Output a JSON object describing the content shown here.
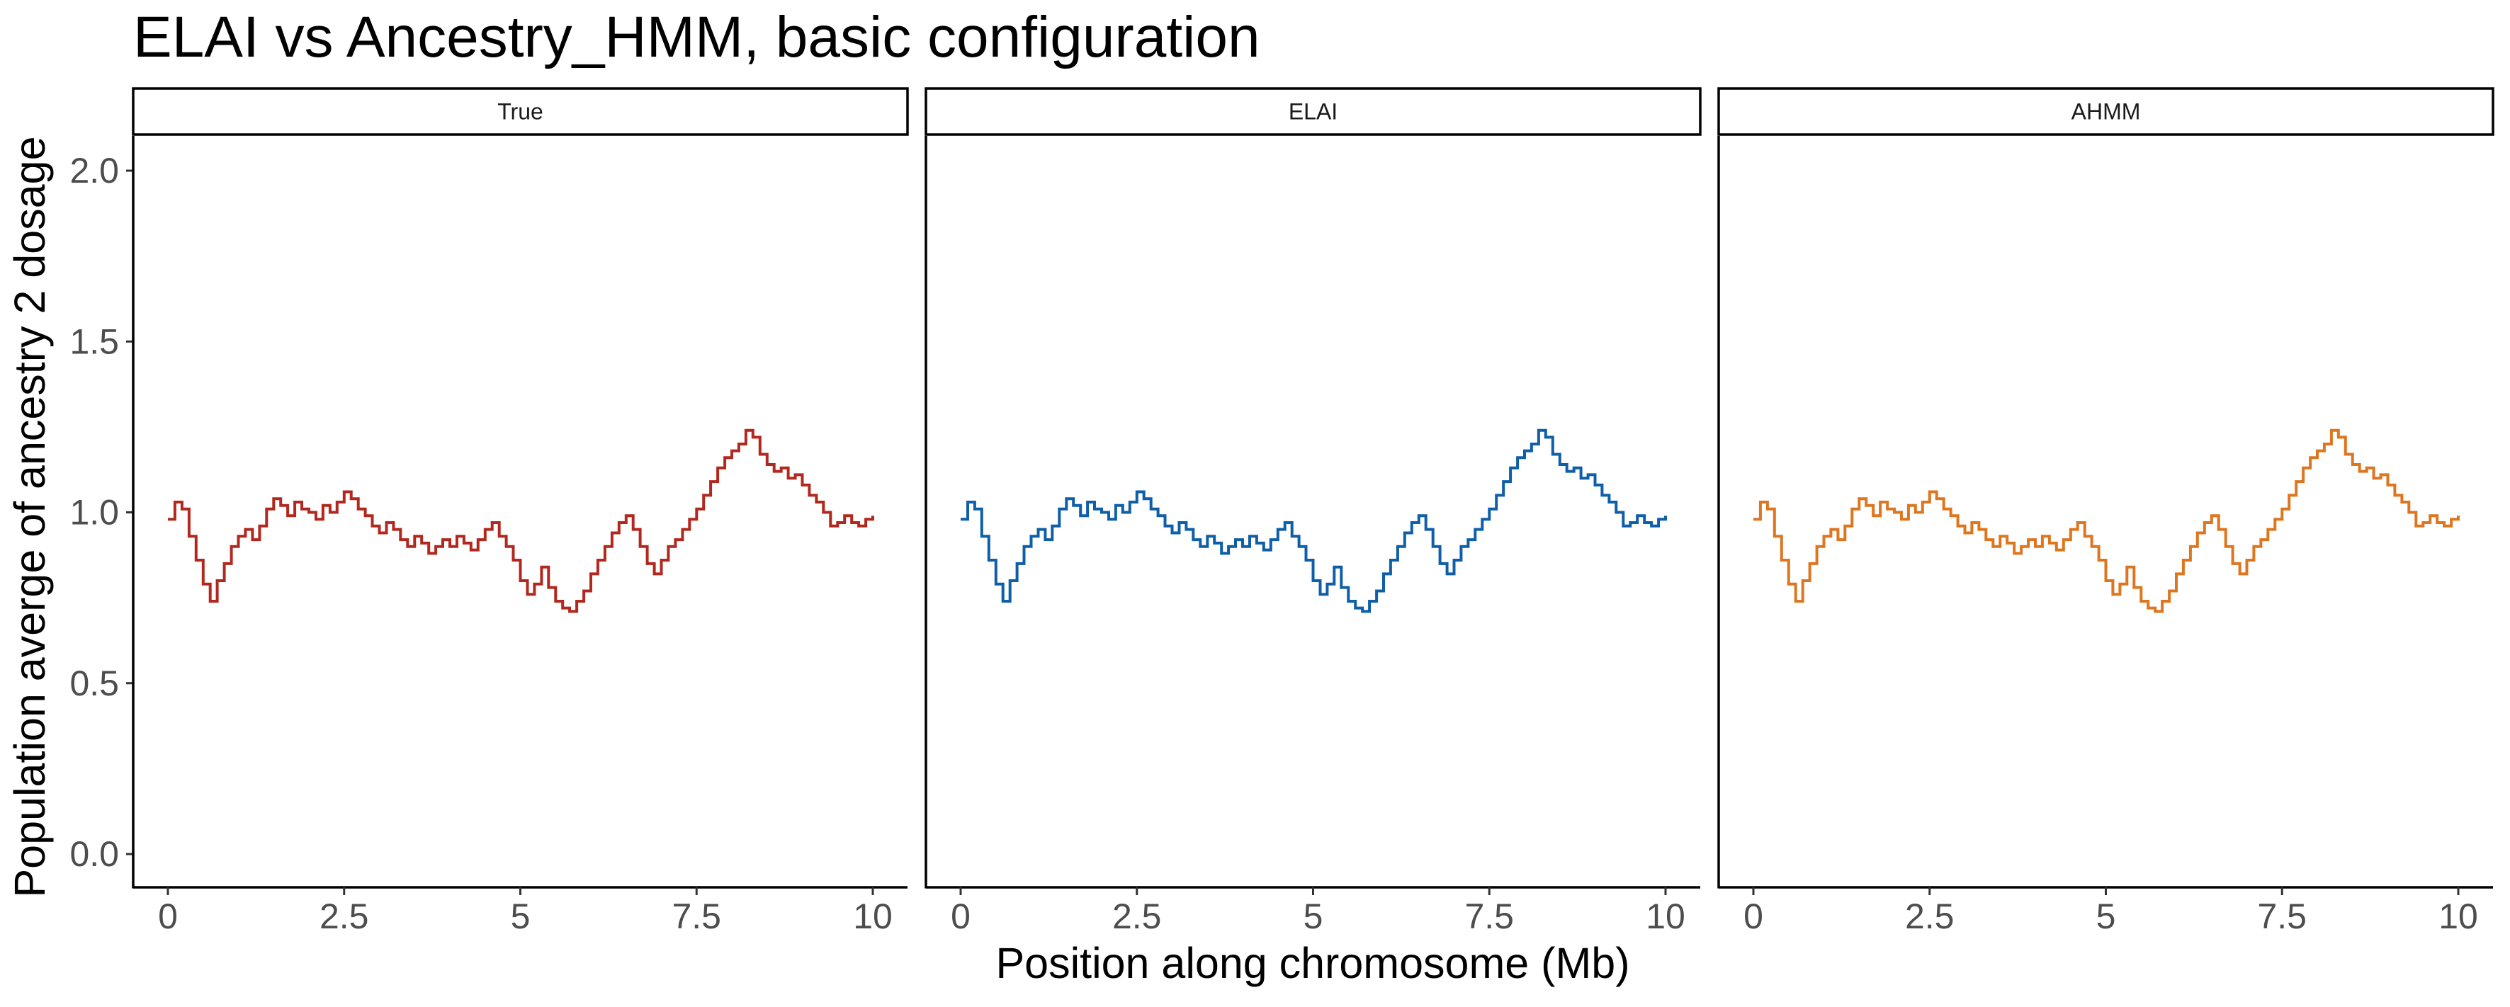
{
  "chart_data": {
    "type": "line",
    "title": "ELAI vs Ancestry_HMM, basic configuration",
    "xlabel": "Position along chromosome (Mb)",
    "ylabel": "Population averge of ancestry 2 dosage",
    "xlim": [
      0,
      10
    ],
    "ylim": [
      0,
      2.0
    ],
    "x_ticks": [
      "0",
      "2.5",
      "5",
      "7.5",
      "10"
    ],
    "y_ticks": [
      "0.0",
      "0.5",
      "1.0",
      "1.5",
      "2.0"
    ],
    "grid": false,
    "legend": "none",
    "panels": [
      {
        "name": "True",
        "color": "#B2281E"
      },
      {
        "name": "ELAI",
        "color": "#0F5FA8"
      },
      {
        "name": "AHMM",
        "color": "#DE7620"
      }
    ],
    "series": {
      "x": [
        0,
        0.1,
        0.2,
        0.3,
        0.4,
        0.5,
        0.6,
        0.7,
        0.8,
        0.9,
        1.0,
        1.1,
        1.2,
        1.3,
        1.4,
        1.5,
        1.6,
        1.7,
        1.8,
        1.9,
        2.0,
        2.1,
        2.2,
        2.3,
        2.4,
        2.5,
        2.6,
        2.7,
        2.8,
        2.9,
        3.0,
        3.1,
        3.2,
        3.3,
        3.4,
        3.5,
        3.6,
        3.7,
        3.8,
        3.9,
        4.0,
        4.1,
        4.2,
        4.3,
        4.4,
        4.5,
        4.6,
        4.7,
        4.8,
        4.9,
        5.0,
        5.1,
        5.2,
        5.3,
        5.4,
        5.5,
        5.6,
        5.7,
        5.8,
        5.9,
        6.0,
        6.1,
        6.2,
        6.3,
        6.4,
        6.5,
        6.6,
        6.7,
        6.8,
        6.9,
        7.0,
        7.1,
        7.2,
        7.3,
        7.4,
        7.5,
        7.6,
        7.7,
        7.8,
        7.9,
        8.0,
        8.1,
        8.2,
        8.3,
        8.4,
        8.5,
        8.6,
        8.7,
        8.8,
        8.9,
        9.0,
        9.1,
        9.2,
        9.3,
        9.4,
        9.5,
        9.6,
        9.7,
        9.8,
        9.9,
        10.0
      ],
      "y": [
        0.98,
        1.03,
        1.01,
        0.93,
        0.86,
        0.79,
        0.74,
        0.8,
        0.85,
        0.9,
        0.93,
        0.95,
        0.92,
        0.96,
        1.01,
        1.04,
        1.02,
        0.99,
        1.03,
        1.01,
        1.0,
        0.98,
        1.02,
        1.0,
        1.03,
        1.06,
        1.04,
        1.01,
        0.99,
        0.96,
        0.94,
        0.97,
        0.95,
        0.92,
        0.9,
        0.93,
        0.91,
        0.88,
        0.9,
        0.92,
        0.9,
        0.93,
        0.91,
        0.89,
        0.92,
        0.95,
        0.97,
        0.93,
        0.9,
        0.86,
        0.8,
        0.76,
        0.79,
        0.84,
        0.78,
        0.74,
        0.72,
        0.71,
        0.74,
        0.77,
        0.82,
        0.86,
        0.9,
        0.94,
        0.97,
        0.99,
        0.95,
        0.9,
        0.85,
        0.82,
        0.86,
        0.9,
        0.92,
        0.95,
        0.98,
        1.01,
        1.05,
        1.09,
        1.13,
        1.16,
        1.18,
        1.2,
        1.24,
        1.22,
        1.17,
        1.14,
        1.12,
        1.13,
        1.1,
        1.11,
        1.08,
        1.05,
        1.03,
        1.0,
        0.96,
        0.97,
        0.99,
        0.97,
        0.96,
        0.98,
        0.99
      ]
    }
  }
}
